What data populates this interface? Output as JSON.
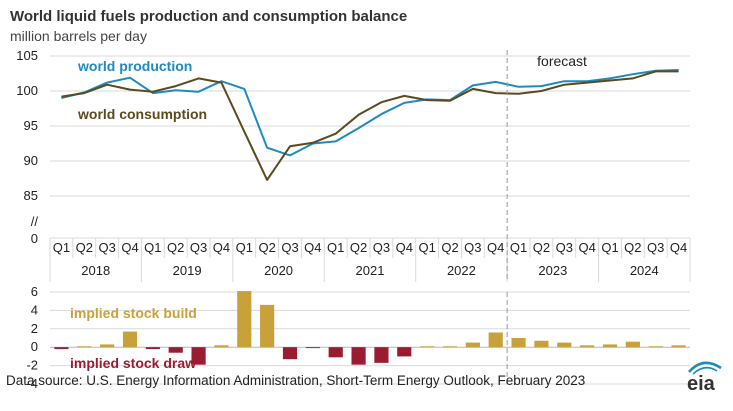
{
  "chart_data": [
    {
      "type": "line",
      "title": "World liquid fuels production and consumption balance",
      "subtitle": "million barrels per day",
      "ylim": [
        85,
        105
      ],
      "yticks": [
        "105",
        "100",
        "95",
        "90",
        "85"
      ],
      "ybreak_labels": [
        "//",
        "0"
      ],
      "forecast_label": "forecast",
      "forecast_start_index": 20,
      "quarters": [
        "Q1",
        "Q2",
        "Q3",
        "Q4",
        "Q1",
        "Q2",
        "Q3",
        "Q4",
        "Q1",
        "Q2",
        "Q3",
        "Q4",
        "Q1",
        "Q2",
        "Q3",
        "Q4",
        "Q1",
        "Q2",
        "Q3",
        "Q4",
        "Q1",
        "Q2",
        "Q3",
        "Q4",
        "Q1",
        "Q2",
        "Q3",
        "Q4"
      ],
      "years": [
        "2018",
        "2019",
        "2020",
        "2021",
        "2022",
        "2023",
        "2024"
      ],
      "series": [
        {
          "name": "world production",
          "color": "#1f8ac0",
          "values": [
            99.0,
            99.8,
            101.2,
            101.9,
            99.7,
            100.1,
            99.9,
            101.4,
            100.3,
            91.9,
            90.8,
            92.5,
            92.8,
            94.7,
            96.7,
            98.3,
            98.8,
            98.7,
            100.8,
            101.3,
            100.6,
            100.7,
            101.4,
            101.4,
            101.8,
            102.4,
            102.9,
            103.0
          ]
        },
        {
          "name": "world consumption",
          "color": "#5c4a1e",
          "values": [
            99.2,
            99.7,
            100.9,
            100.2,
            99.9,
            100.7,
            101.8,
            101.2,
            94.2,
            87.3,
            92.1,
            92.6,
            93.9,
            96.6,
            98.4,
            99.3,
            98.7,
            98.6,
            100.3,
            99.7,
            99.6,
            100.0,
            100.9,
            101.2,
            101.5,
            101.8,
            102.8,
            102.8
          ]
        }
      ]
    },
    {
      "type": "bar",
      "ylim": [
        -4,
        6
      ],
      "yticks": [
        "6",
        "4",
        "2",
        "0",
        "-2",
        "-4"
      ],
      "categories": [
        "2018 Q1",
        "2018 Q2",
        "2018 Q3",
        "2018 Q4",
        "2019 Q1",
        "2019 Q2",
        "2019 Q3",
        "2019 Q4",
        "2020 Q1",
        "2020 Q2",
        "2020 Q3",
        "2020 Q4",
        "2021 Q1",
        "2021 Q2",
        "2021 Q3",
        "2021 Q4",
        "2022 Q1",
        "2022 Q2",
        "2022 Q3",
        "2022 Q4",
        "2023 Q1",
        "2023 Q2",
        "2023 Q3",
        "2023 Q4",
        "2024 Q1",
        "2024 Q2",
        "2024 Q3",
        "2024 Q4"
      ],
      "values": [
        -0.2,
        0.1,
        0.3,
        1.7,
        -0.2,
        -0.6,
        -1.9,
        0.2,
        6.1,
        4.6,
        -1.3,
        -0.1,
        -1.1,
        -1.9,
        -1.7,
        -1.0,
        0.1,
        0.1,
        0.5,
        1.6,
        1.0,
        0.7,
        0.5,
        0.2,
        0.3,
        0.6,
        0.1,
        0.2
      ],
      "build_label": "implied stock  build",
      "draw_label": "implied stock draw",
      "build_color": "#c9a13b",
      "draw_color": "#9b1b30"
    }
  ],
  "source": "Data source: U.S. Energy Information Administration, Short-Term Energy Outlook, February 2023",
  "logo_text": "eia",
  "colors": {
    "grid": "#d9d9d9",
    "axis": "#555555",
    "forecast_line": "#999999",
    "logo": "#1f8ac0"
  }
}
